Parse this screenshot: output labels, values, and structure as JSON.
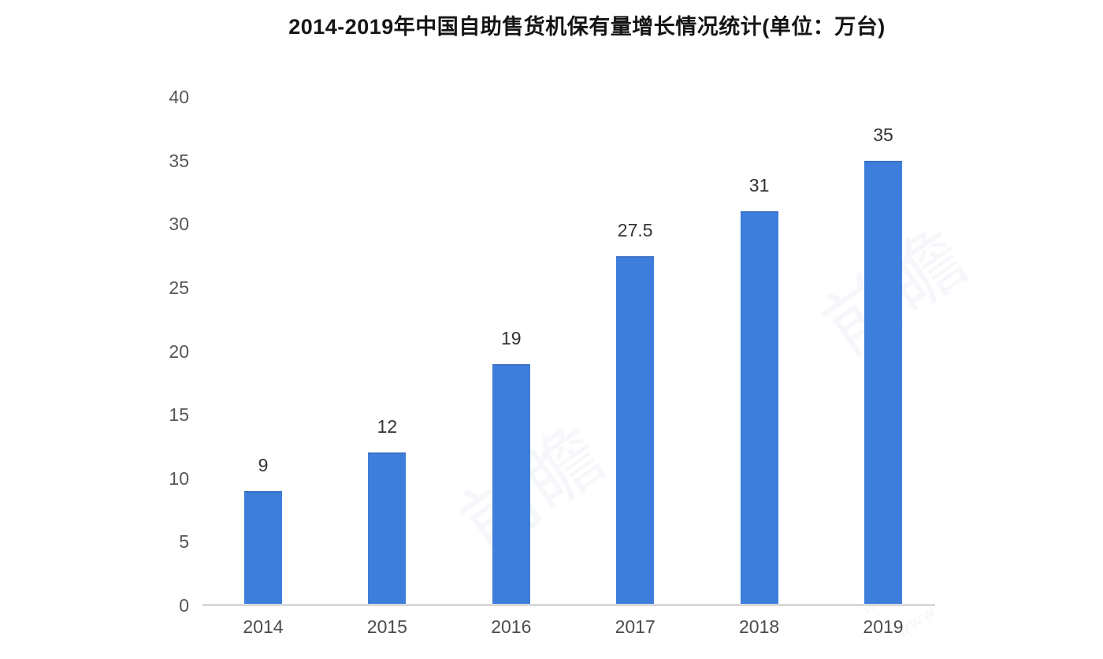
{
  "chart_data": {
    "type": "bar",
    "title": "2014-2019年中国自助售货机保有量增长情况统计(单位：万台)",
    "categories": [
      "2014",
      "2015",
      "2016",
      "2017",
      "2018",
      "2019"
    ],
    "values": [
      9,
      12,
      19,
      27.5,
      31,
      35
    ],
    "value_labels": [
      "9",
      "12",
      "19",
      "27.5",
      "31",
      "35"
    ],
    "yticks": [
      0,
      5,
      10,
      15,
      20,
      25,
      30,
      35,
      40
    ],
    "ylim": [
      0,
      40
    ],
    "xlabel": "",
    "ylabel": "",
    "grid": "off",
    "legend": "none",
    "bar_color": "#3d7edc",
    "bar_edge_color": "#3a71c4",
    "axis_line_color": "#d9d9d9",
    "tick_label_color": "#575757",
    "value_label_color": "#333333",
    "title_color": "#151515"
  },
  "watermark": {
    "brand_text": "前瞻",
    "script_text": "www"
  }
}
